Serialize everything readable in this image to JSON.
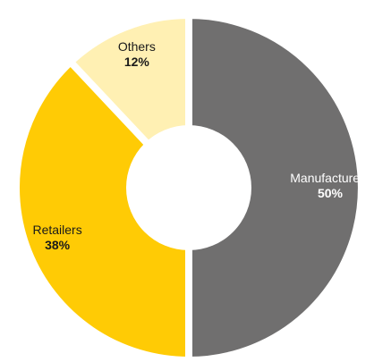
{
  "chart_data": {
    "type": "pie",
    "title": "",
    "donut": true,
    "slices": [
      {
        "label": "Manufacturers",
        "value": 50,
        "value_label": "50%",
        "color": "#706f6f",
        "text_color": "#ffffff"
      },
      {
        "label": "Retailers",
        "value": 38,
        "value_label": "38%",
        "color": "#ffcb05",
        "text_color": "#1a1a1a"
      },
      {
        "label": "Others",
        "value": 12,
        "value_label": "12%",
        "color": "#fff0b3",
        "text_color": "#1a1a1a"
      }
    ]
  }
}
